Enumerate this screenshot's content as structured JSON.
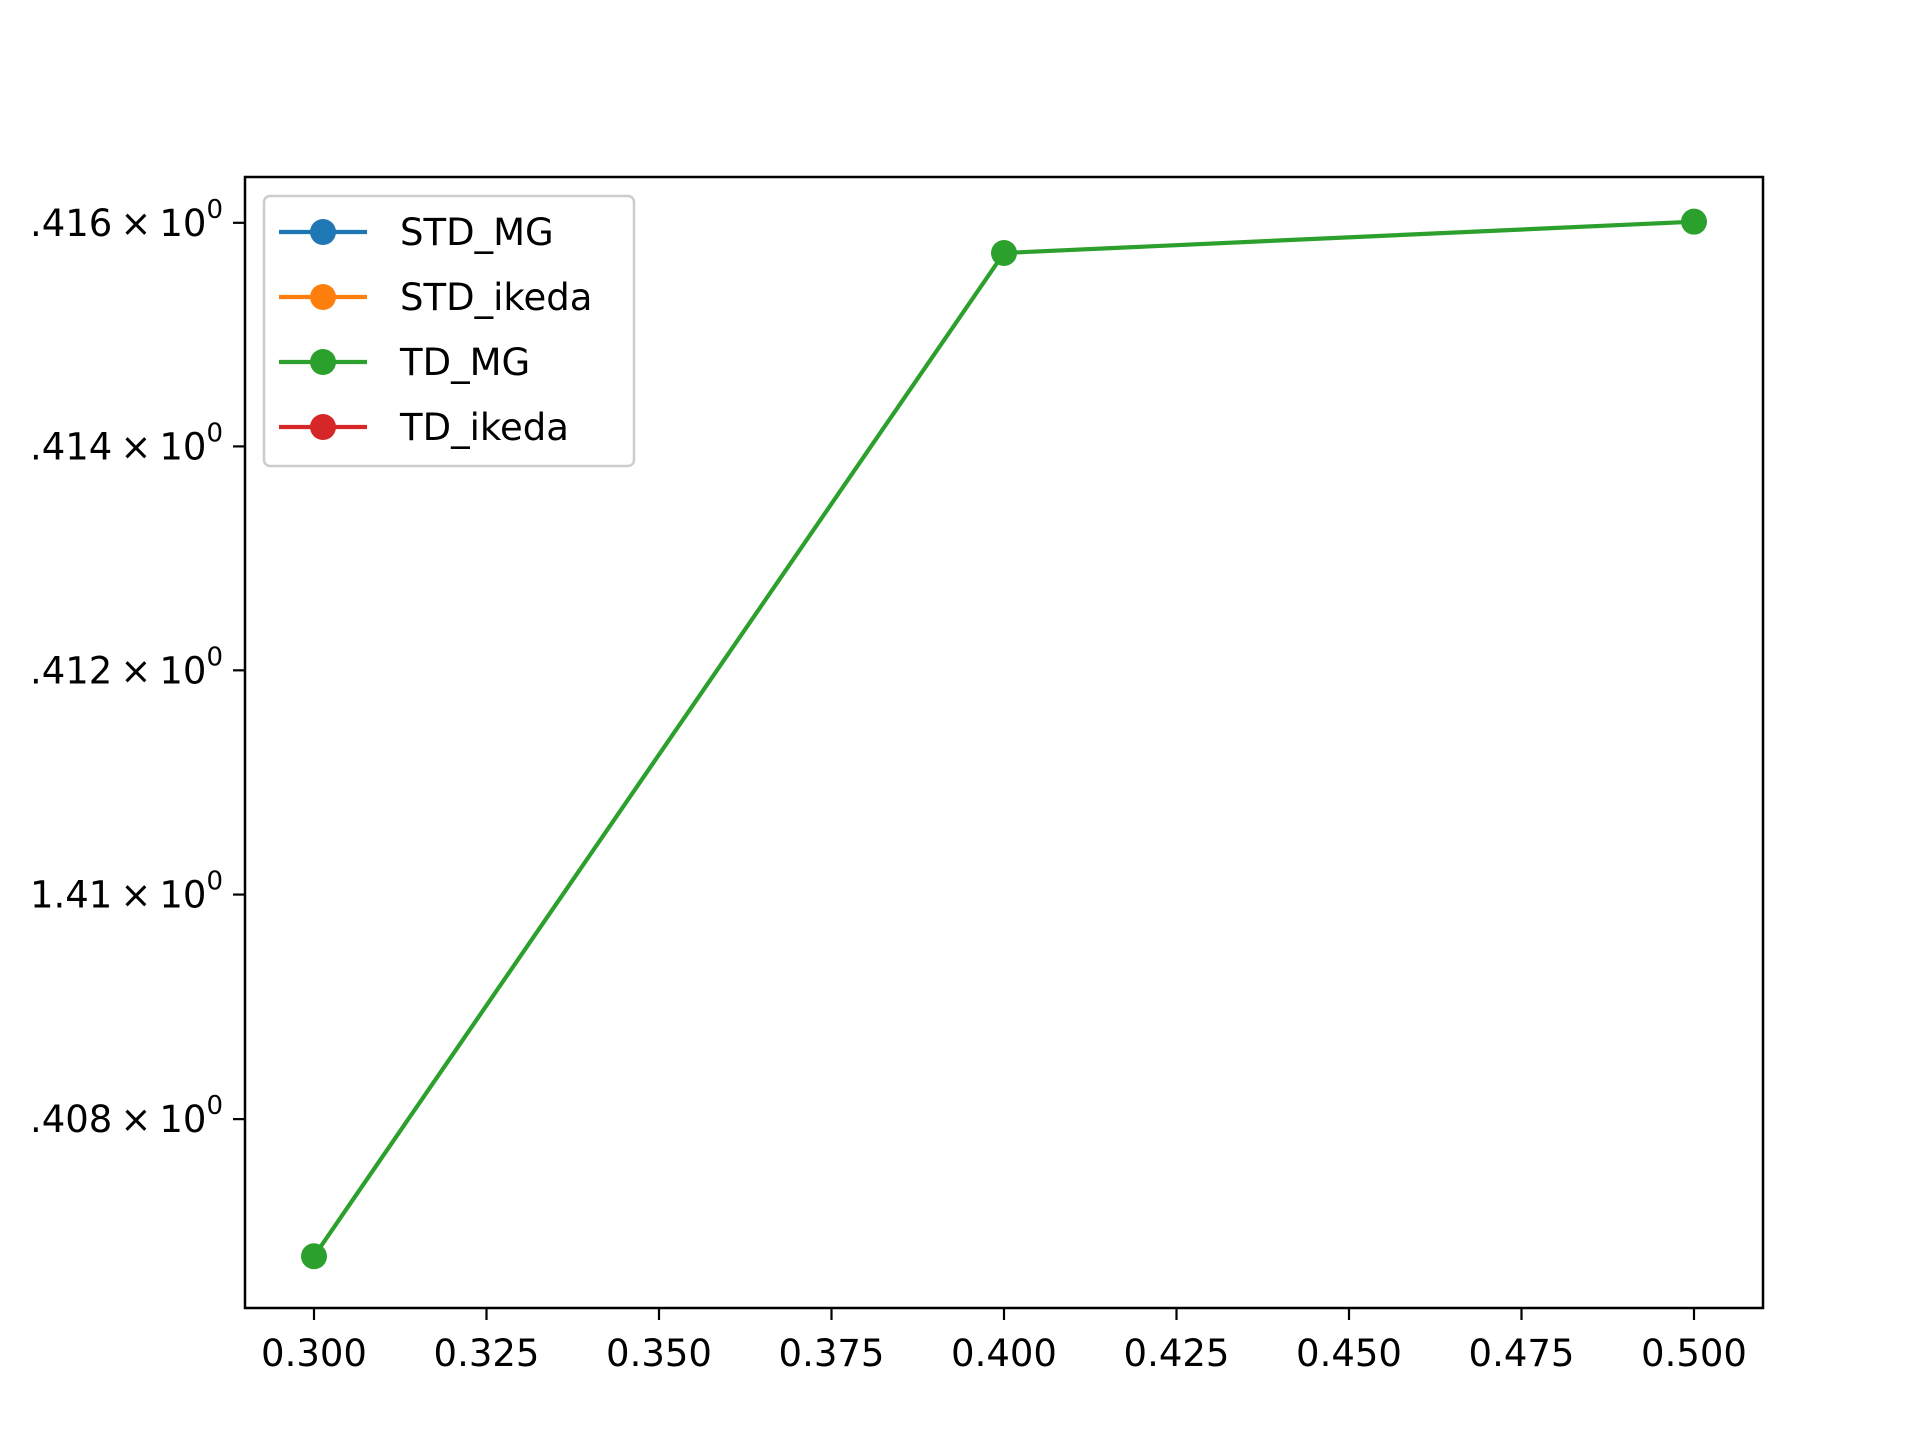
{
  "chart_data": {
    "type": "line",
    "title": "",
    "xlabel": "",
    "ylabel": "",
    "yscale": "log",
    "xlim": [
      0.29,
      0.51
    ],
    "ylim": [
      1.40632,
      1.41641
    ],
    "x_ticks": [
      0.3,
      0.325,
      0.35,
      0.375,
      0.4,
      0.425,
      0.45,
      0.475,
      0.5
    ],
    "x_tick_labels": [
      "0.300",
      "0.325",
      "0.350",
      "0.375",
      "0.400",
      "0.425",
      "0.450",
      "0.475",
      "0.500"
    ],
    "y_ticks": [
      1.408,
      1.41,
      1.412,
      1.414,
      1.416
    ],
    "y_tick_labels": [
      {
        "mantissa": ".408",
        "times": "×",
        "base": "10",
        "exp": "0"
      },
      {
        "mantissa": "1.41",
        "times": "×",
        "base": "10",
        "exp": "0"
      },
      {
        "mantissa": ".412",
        "times": "×",
        "base": "10",
        "exp": "0"
      },
      {
        "mantissa": ".414",
        "times": "×",
        "base": "10",
        "exp": "0"
      },
      {
        "mantissa": ".416",
        "times": "×",
        "base": "10",
        "exp": "0"
      }
    ],
    "grid": false,
    "legend_position": "top-left",
    "series": [
      {
        "name": "STD_MG",
        "color": "#1f77b4",
        "x": [],
        "y": []
      },
      {
        "name": "STD_ikeda",
        "color": "#ff7f0e",
        "x": [],
        "y": []
      },
      {
        "name": "TD_MG",
        "color": "#2ca02c",
        "x": [
          0.3,
          0.4,
          0.5
        ],
        "y": [
          1.40678,
          1.41573,
          1.41601
        ]
      },
      {
        "name": "TD_ikeda",
        "color": "#d62728",
        "x": [],
        "y": []
      }
    ]
  }
}
